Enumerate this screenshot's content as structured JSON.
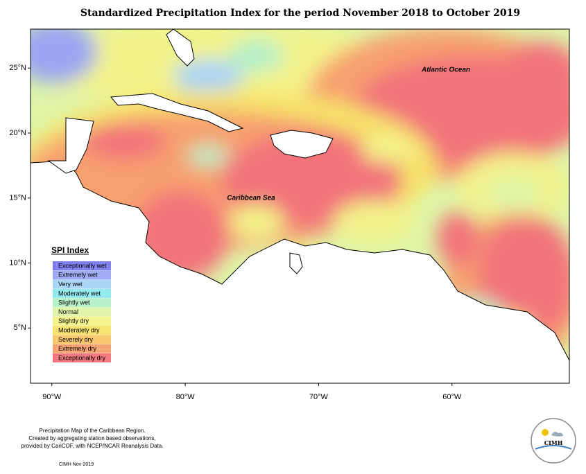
{
  "title": "Standardized Precipitation Index for the period November 2018 to October 2019",
  "map": {
    "lonlim": [
      -91.6,
      -51.2
    ],
    "latlim": [
      0.75,
      28
    ],
    "lat_ticks": [
      {
        "value": 25,
        "label": "25°N"
      },
      {
        "value": 20,
        "label": "20°N"
      },
      {
        "value": 15,
        "label": "15°N"
      },
      {
        "value": 10,
        "label": "10°N"
      },
      {
        "value": 5,
        "label": "5°N"
      }
    ],
    "lon_ticks": [
      {
        "value": -90,
        "label": "90°W"
      },
      {
        "value": -80,
        "label": "80°W"
      },
      {
        "value": -70,
        "label": "70°W"
      },
      {
        "value": -60,
        "label": "60°W"
      }
    ],
    "labels": {
      "atlantic": "Atlantic Ocean",
      "caribbean": "Caribbean Sea"
    }
  },
  "legend": {
    "title": "SPI Index",
    "items": [
      {
        "name": "Exceptionally wet",
        "color": "#7b7bef"
      },
      {
        "name": "Extremely wet",
        "color": "#9aa6f2"
      },
      {
        "name": "Very wet",
        "color": "#a8d4f5"
      },
      {
        "name": "Moderately wet",
        "color": "#8ee8ee"
      },
      {
        "name": "Slightly wet",
        "color": "#b5f0c8"
      },
      {
        "name": "Normal",
        "color": "#def5a8"
      },
      {
        "name": "Slightly dry",
        "color": "#f3f38a"
      },
      {
        "name": "Moderately dry",
        "color": "#f7e36a"
      },
      {
        "name": "Severely dry",
        "color": "#f9c66a"
      },
      {
        "name": "Extremely dry",
        "color": "#f7a070"
      },
      {
        "name": "Exceptionally dry",
        "color": "#f2737a"
      }
    ]
  },
  "footer": {
    "lines": [
      "Precipitation Map of the Caribbean Region.",
      "Created by aggregating station based observations,",
      "provided by CariCOF, with NCEP/NCAR Reanalysis Data."
    ],
    "credit": "CIMH Nov-2019"
  },
  "logo": {
    "text": "CIMH"
  }
}
